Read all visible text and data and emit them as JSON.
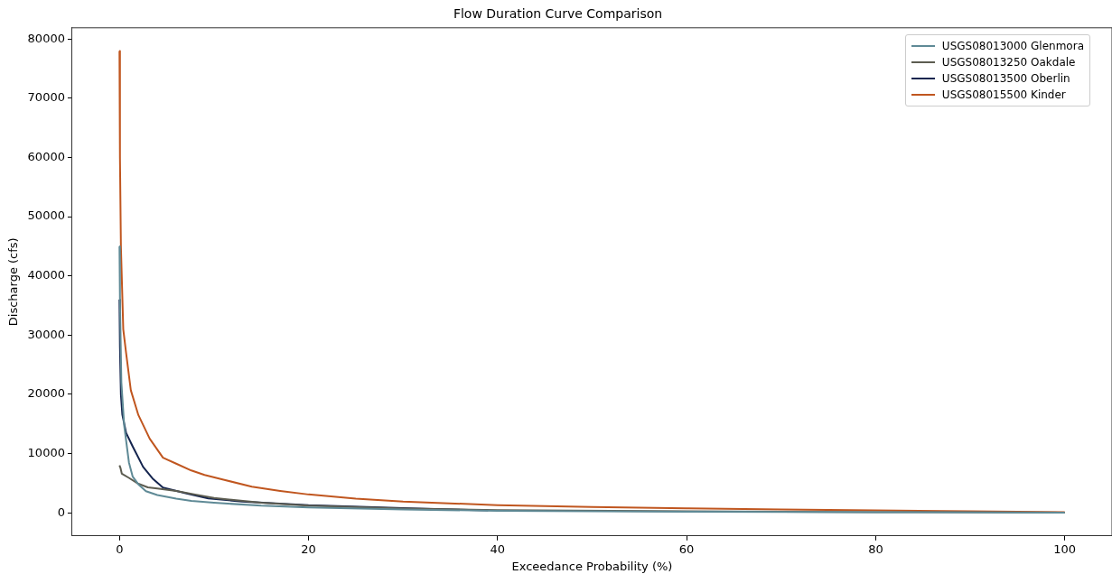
{
  "chart_data": {
    "type": "line",
    "title": "Flow Duration Curve Comparison",
    "xlabel": "Exceedance Probability (%)",
    "ylabel": "Discharge (cfs)",
    "xlim": [
      -5,
      105
    ],
    "xticks": [
      0,
      20,
      40,
      60,
      80,
      100
    ],
    "ylim": [
      -3900,
      81900
    ],
    "yticks": [
      0,
      10000,
      20000,
      30000,
      40000,
      50000,
      60000,
      70000,
      80000
    ],
    "grid": false,
    "legend": "top right",
    "marker": "none",
    "line_style": "solid",
    "series": [
      {
        "name": "USGS08013000 Glenmora",
        "color": "#5f8a96",
        "x": [
          0,
          0.05,
          0.2,
          0.5,
          1,
          1.4,
          2,
          2.8,
          4,
          6,
          7.6,
          10,
          15,
          20,
          30,
          40,
          60,
          80,
          100
        ],
        "values": [
          45000,
          36000,
          22000,
          14700,
          8500,
          6100,
          4800,
          3650,
          3000,
          2400,
          2000,
          1700,
          1200,
          900,
          550,
          350,
          200,
          120,
          50
        ]
      },
      {
        "name": "USGS08013250 Oakdale",
        "color": "#5c5c50",
        "x": [
          0,
          0.1,
          0.25,
          1,
          2,
          3,
          4,
          6,
          8,
          10,
          15,
          20,
          30,
          40,
          60,
          80,
          100
        ],
        "values": [
          8000,
          7600,
          6600,
          5900,
          4900,
          4300,
          4100,
          3700,
          3100,
          2500,
          1700,
          1200,
          700,
          450,
          250,
          120,
          40
        ]
      },
      {
        "name": "USGS08013500 Oberlin",
        "color": "#15254f",
        "x": [
          0,
          0.05,
          0.15,
          0.3,
          0.7,
          1.4,
          2.5,
          3.5,
          4.6,
          7,
          9.4,
          13,
          20,
          30,
          39
        ],
        "values": [
          36000,
          28000,
          20000,
          16600,
          13500,
          11200,
          7750,
          5800,
          4250,
          3300,
          2430,
          1900,
          1300,
          800,
          400
        ]
      },
      {
        "name": "USGS08015500 Kinder",
        "color": "#c0561f",
        "x": [
          0,
          0.05,
          0.15,
          0.4,
          0.7,
          1.2,
          2,
          3.2,
          4.6,
          6,
          7.6,
          9,
          11,
          14,
          17,
          20,
          25,
          30,
          40,
          50,
          60,
          70,
          80,
          90,
          100
        ],
        "values": [
          78000,
          60000,
          45000,
          31000,
          27000,
          20700,
          16500,
          12500,
          9300,
          8300,
          7150,
          6400,
          5600,
          4400,
          3700,
          3100,
          2400,
          1900,
          1300,
          1000,
          750,
          550,
          400,
          250,
          100
        ]
      }
    ]
  }
}
